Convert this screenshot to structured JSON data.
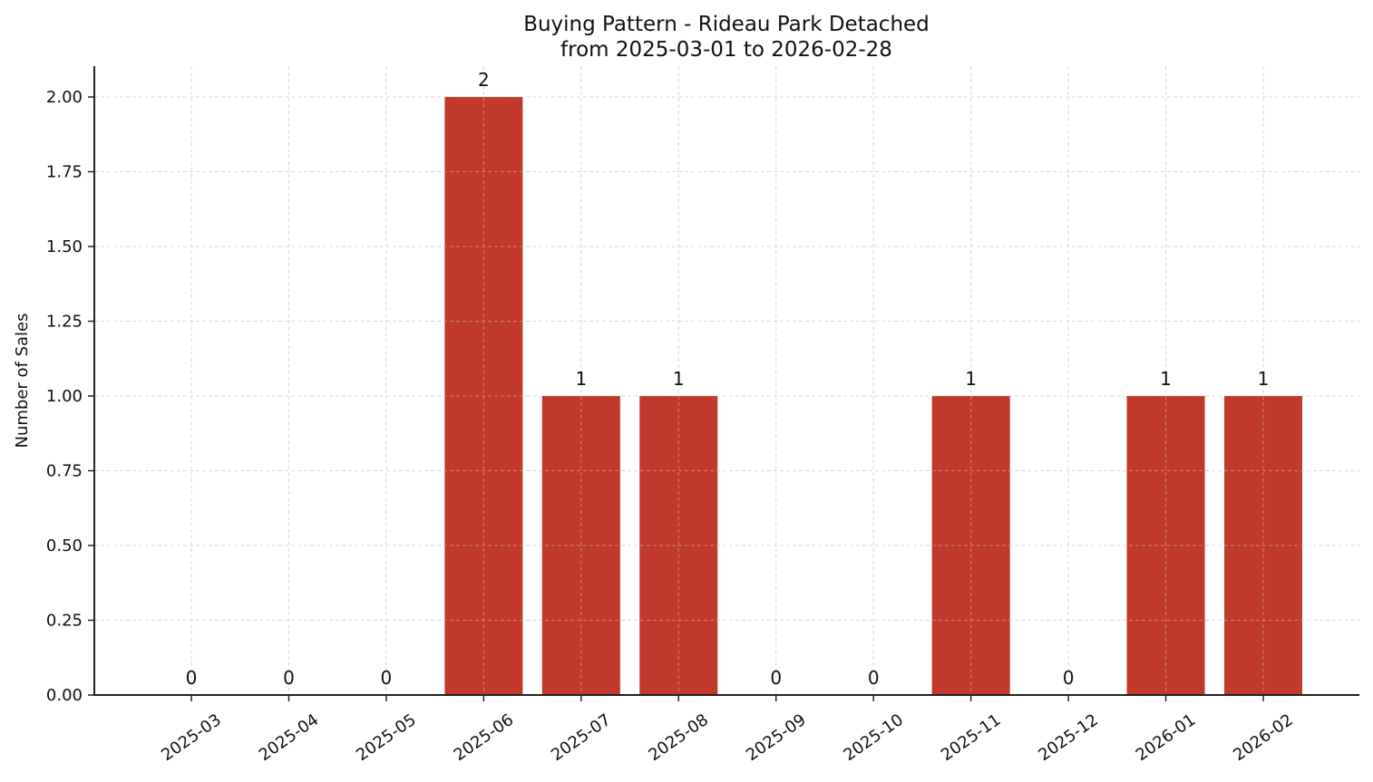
{
  "chart_data": {
    "type": "bar",
    "title": "Buying Pattern - Rideau Park Detached",
    "subtitle": "from 2025-03-01 to 2026-02-28",
    "xlabel": "",
    "ylabel": "Number of Sales",
    "categories": [
      "2025-03",
      "2025-04",
      "2025-05",
      "2025-06",
      "2025-07",
      "2025-08",
      "2025-09",
      "2025-10",
      "2025-11",
      "2025-12",
      "2026-01",
      "2026-02"
    ],
    "values": [
      0,
      0,
      0,
      2,
      1,
      1,
      0,
      0,
      1,
      0,
      1,
      1
    ],
    "data_labels": [
      "0",
      "0",
      "0",
      "2",
      "1",
      "1",
      "0",
      "0",
      "1",
      "0",
      "1",
      "1"
    ],
    "ylim": [
      0,
      2.1
    ],
    "yticks": [
      0,
      0.25,
      0.5,
      0.75,
      1.0,
      1.25,
      1.5,
      1.75,
      2.0
    ],
    "ytick_labels": [
      "0.00",
      "0.25",
      "0.50",
      "0.75",
      "1.00",
      "1.25",
      "1.50",
      "1.75",
      "2.00"
    ],
    "grid": true,
    "grid_style": "dashed",
    "legend": null,
    "colors": {
      "bar": "#c0392b",
      "grid": "#d9d9d9",
      "axis": "#222222"
    }
  }
}
